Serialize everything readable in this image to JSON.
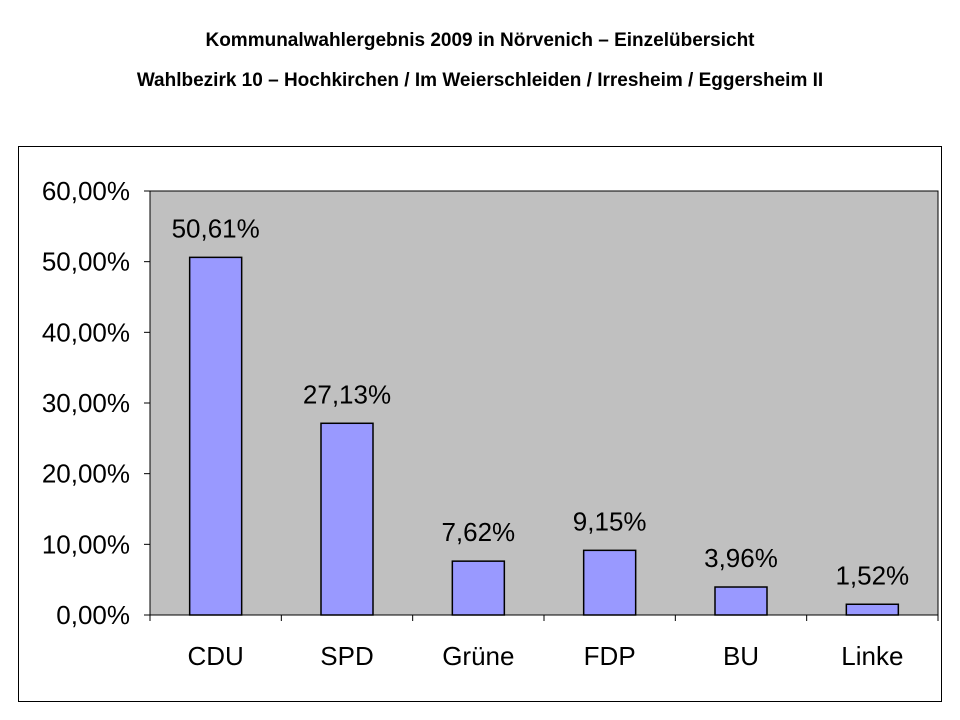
{
  "title": "Kommunalwahlergebnis 2009 in Nörvenich – Einzelübersicht",
  "subtitle": "Wahlbezirk 10 – Hochkirchen / Im Weierschleiden / Irresheim / Eggersheim II",
  "chart_data": {
    "type": "bar",
    "categories": [
      "CDU",
      "SPD",
      "Grüne",
      "FDP",
      "BU",
      "Linke"
    ],
    "values": [
      50.61,
      27.13,
      7.62,
      9.15,
      3.96,
      1.52
    ],
    "data_labels": [
      "50,61%",
      "27,13%",
      "7,62%",
      "9,15%",
      "3,96%",
      "1,52%"
    ],
    "ylim": [
      0,
      60
    ],
    "yticks": [
      0,
      10,
      20,
      30,
      40,
      50,
      60
    ],
    "ytick_labels": [
      "0,00%",
      "10,00%",
      "20,00%",
      "30,00%",
      "40,00%",
      "50,00%",
      "60,00%"
    ],
    "xlabel": "",
    "ylabel": "",
    "grid": false,
    "legend": "none",
    "colors": {
      "bar_fill": "#9999ff",
      "plot_background": "#c0c0c0",
      "outline": "#000000"
    }
  }
}
